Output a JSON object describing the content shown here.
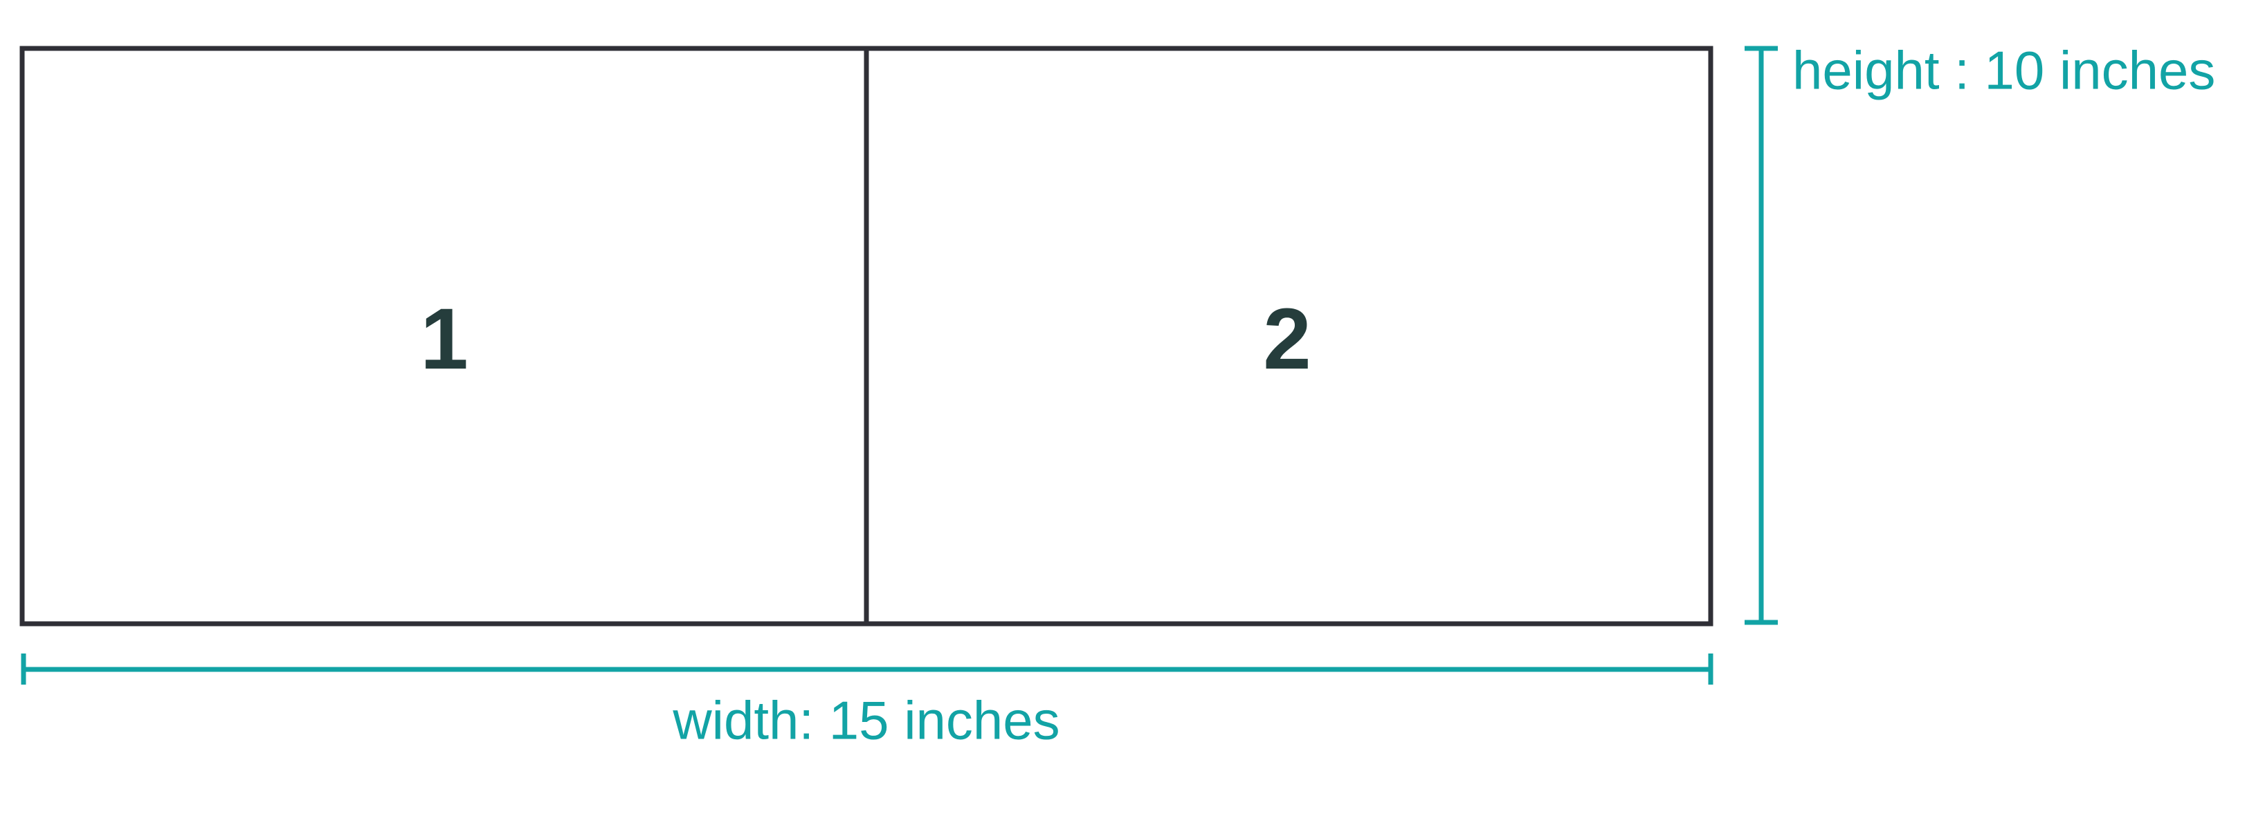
{
  "panels": [
    {
      "label": "1"
    },
    {
      "label": "2"
    }
  ],
  "dimensions": {
    "height_label": "height : 10 inches",
    "width_label": "width: 15 inches"
  },
  "colors": {
    "outline": "#2f2f36",
    "panel_text": "#253d3c",
    "dimension": "#12a3a5",
    "background": "#ffffff"
  }
}
